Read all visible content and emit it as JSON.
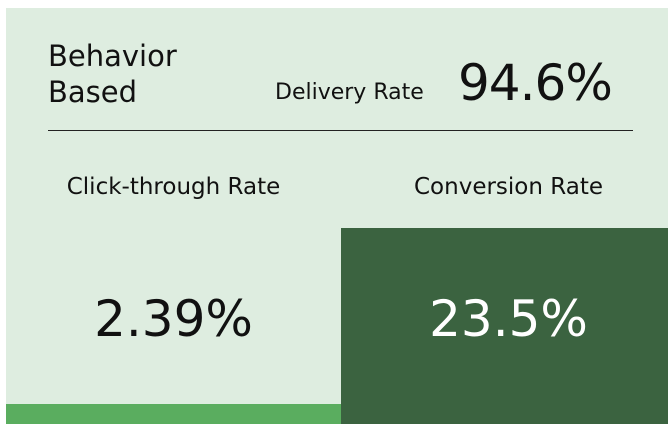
{
  "header": {
    "title": "Behavior Based",
    "metric_label": "Delivery Rate",
    "metric_value": "94.6%"
  },
  "metrics": [
    {
      "label": "Click-through Rate",
      "value": "2.39%"
    },
    {
      "label": "Conversion Rate",
      "value": "23.5%"
    }
  ]
}
